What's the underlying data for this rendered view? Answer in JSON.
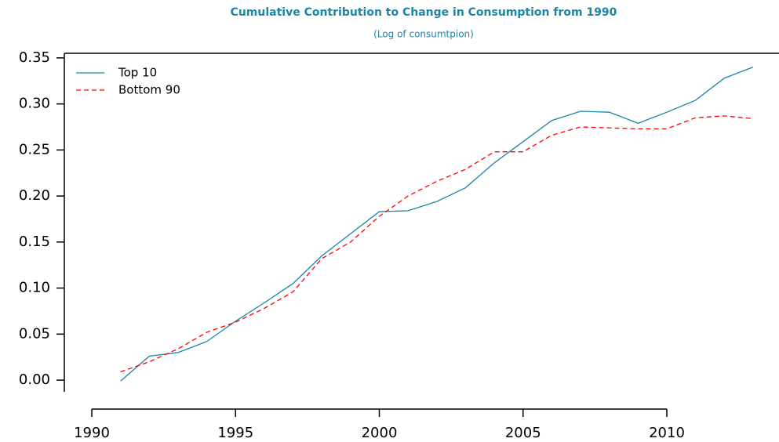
{
  "chart_data": {
    "type": "line",
    "title": "Cumulative Contribution to Change in Consumption from 1990",
    "subtitle": "(Log of consumtpion)",
    "x": [
      1991,
      1992,
      1993,
      1994,
      1995,
      1996,
      1997,
      1998,
      1999,
      2000,
      2001,
      2002,
      2003,
      2004,
      2005,
      2006,
      2007,
      2008,
      2009,
      2010,
      2011,
      2012,
      2013
    ],
    "series": [
      {
        "name": "Top 10",
        "color": "#1a86a8",
        "linestyle": "solid",
        "values": [
          -0.001,
          0.026,
          0.03,
          0.042,
          0.064,
          0.084,
          0.105,
          0.135,
          0.159,
          0.183,
          0.184,
          0.194,
          0.209,
          0.236,
          0.259,
          0.282,
          0.292,
          0.291,
          0.279,
          0.291,
          0.304,
          0.328,
          0.34
        ]
      },
      {
        "name": "Bottom 90",
        "color": "#ff0000",
        "linestyle": "dashed",
        "values": [
          0.009,
          0.02,
          0.034,
          0.052,
          0.063,
          0.078,
          0.096,
          0.132,
          0.15,
          0.178,
          0.2,
          0.216,
          0.229,
          0.248,
          0.248,
          0.266,
          0.275,
          0.274,
          0.273,
          0.273,
          0.285,
          0.287,
          0.284
        ]
      }
    ],
    "xlim": [
      1989,
      2014
    ],
    "xticks": [
      1990,
      1995,
      2000,
      2005,
      2010
    ],
    "ylim": [
      -0.015,
      0.355
    ],
    "yticks": [
      {
        "value": 0,
        "label": "0.00"
      },
      {
        "value": 0.05,
        "label": "0.05"
      },
      {
        "value": 0.1,
        "label": "0.10"
      },
      {
        "value": 0.15,
        "label": "0.15"
      },
      {
        "value": 0.2,
        "label": "0.20"
      },
      {
        "value": 0.25,
        "label": "0.25"
      },
      {
        "value": 0.3,
        "label": "0.30"
      },
      {
        "value": 0.35,
        "label": "0.35"
      }
    ],
    "legend": "top-left"
  }
}
